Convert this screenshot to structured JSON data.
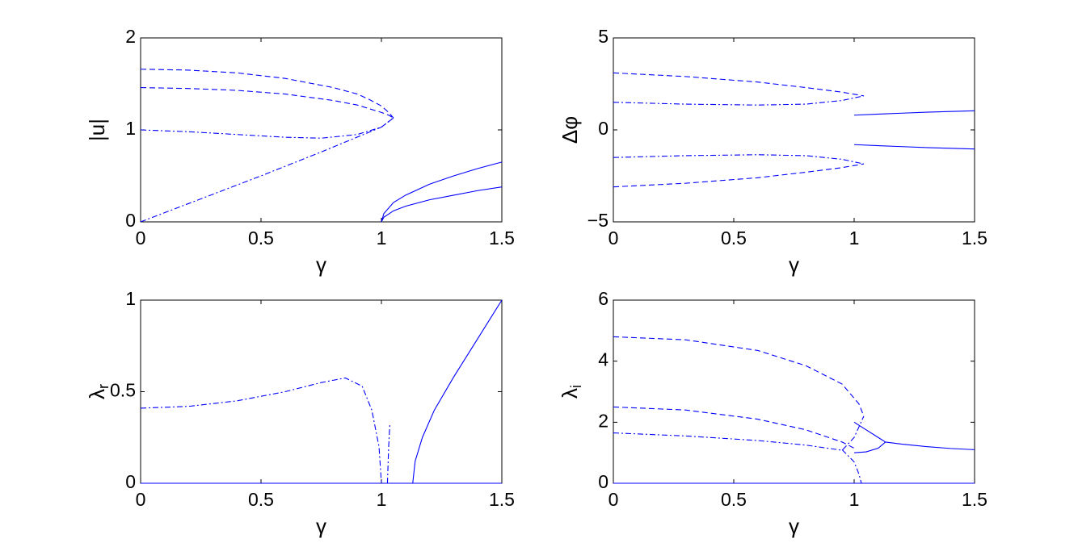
{
  "chart_data": [
    {
      "type": "line",
      "xlabel": "γ",
      "ylabel": "|u|",
      "xlim": [
        0,
        1.5
      ],
      "ylim": [
        0,
        2
      ],
      "xticks": [
        0,
        0.5,
        1,
        1.5
      ],
      "yticks": [
        0,
        1,
        2
      ],
      "series": [
        {
          "color": "#0000ff",
          "dash": "dashed",
          "x": [
            0,
            0.2,
            0.4,
            0.6,
            0.8,
            0.9,
            0.95,
            1.0,
            1.03,
            1.05
          ],
          "values": [
            1.66,
            1.65,
            1.62,
            1.56,
            1.46,
            1.39,
            1.33,
            1.26,
            1.19,
            1.13
          ]
        },
        {
          "color": "#0000ff",
          "dash": "dashed",
          "x": [
            0,
            0.2,
            0.4,
            0.6,
            0.8,
            0.9,
            0.95,
            1.0,
            1.03,
            1.05
          ],
          "values": [
            1.46,
            1.45,
            1.43,
            1.39,
            1.32,
            1.27,
            1.23,
            1.19,
            1.16,
            1.13
          ]
        },
        {
          "color": "#0000ff",
          "dash": "dashdot",
          "x": [
            0,
            0.2,
            0.4,
            0.6,
            0.75,
            0.9,
            1.0,
            1.05
          ],
          "values": [
            1.0,
            0.98,
            0.95,
            0.92,
            0.91,
            0.95,
            1.03,
            1.13
          ]
        },
        {
          "color": "#0000ff",
          "dash": "dashdot",
          "x": [
            0,
            0.25,
            0.5,
            0.75,
            1.0,
            1.05
          ],
          "values": [
            0,
            0.25,
            0.5,
            0.76,
            1.03,
            1.13
          ]
        },
        {
          "color": "#0000ff",
          "dash": "solid",
          "x": [
            1,
            1.01,
            1.05,
            1.1,
            1.2,
            1.3,
            1.4,
            1.5
          ],
          "values": [
            0,
            0.09,
            0.21,
            0.29,
            0.41,
            0.5,
            0.58,
            0.65
          ]
        },
        {
          "color": "#0000ff",
          "dash": "solid",
          "x": [
            1,
            1.01,
            1.05,
            1.1,
            1.2,
            1.3,
            1.4,
            1.5
          ],
          "values": [
            0,
            0.05,
            0.12,
            0.17,
            0.24,
            0.29,
            0.34,
            0.38
          ]
        }
      ]
    },
    {
      "type": "line",
      "xlabel": "γ",
      "ylabel": "Δφ",
      "xlim": [
        0,
        1.5
      ],
      "ylim": [
        -5,
        5
      ],
      "xticks": [
        0,
        0.5,
        1,
        1.5
      ],
      "yticks": [
        {
          "value": -5,
          "label": "−5"
        },
        0,
        5
      ],
      "series": [
        {
          "color": "#0000ff",
          "dash": "dashed",
          "x": [
            0,
            0.3,
            0.6,
            0.8,
            0.95,
            1.04
          ],
          "values": [
            3.1,
            2.9,
            2.6,
            2.3,
            2.05,
            1.85
          ]
        },
        {
          "color": "#0000ff",
          "dash": "dashdot",
          "x": [
            0,
            0.3,
            0.6,
            0.8,
            0.95,
            1.04
          ],
          "values": [
            1.5,
            1.4,
            1.35,
            1.4,
            1.6,
            1.85
          ]
        },
        {
          "color": "#0000ff",
          "dash": "dashdot",
          "x": [
            0,
            0.3,
            0.6,
            0.8,
            0.95,
            1.04
          ],
          "values": [
            -1.5,
            -1.4,
            -1.35,
            -1.4,
            -1.6,
            -1.85
          ]
        },
        {
          "color": "#0000ff",
          "dash": "dashed",
          "x": [
            0,
            0.3,
            0.6,
            0.8,
            0.95,
            1.04
          ],
          "values": [
            -3.1,
            -2.9,
            -2.6,
            -2.3,
            -2.05,
            -1.85
          ]
        },
        {
          "color": "#0000ff",
          "dash": "solid",
          "x": [
            1,
            1.1,
            1.2,
            1.3,
            1.4,
            1.5
          ],
          "values": [
            0.8,
            0.86,
            0.91,
            0.96,
            1.0,
            1.04
          ]
        },
        {
          "color": "#0000ff",
          "dash": "solid",
          "x": [
            1,
            1.1,
            1.2,
            1.3,
            1.4,
            1.5
          ],
          "values": [
            -0.8,
            -0.86,
            -0.91,
            -0.96,
            -1.0,
            -1.04
          ]
        }
      ]
    },
    {
      "type": "line",
      "xlabel": "γ",
      "ylabel": "λ",
      "ylabel_subscript": "r",
      "xlim": [
        0,
        1.5
      ],
      "ylim": [
        0,
        1
      ],
      "xticks": [
        0,
        0.5,
        1,
        1.5
      ],
      "yticks": [
        0,
        0.5,
        1
      ],
      "series": [
        {
          "color": "#0000ff",
          "dash": "solid",
          "x": [
            0,
            1.5
          ],
          "values": [
            0,
            0
          ]
        },
        {
          "color": "#0000ff",
          "dash": "dashdot",
          "x": [
            0,
            0.2,
            0.4,
            0.6,
            0.75,
            0.85,
            0.92,
            0.96,
            0.99,
            1.0
          ],
          "values": [
            0.41,
            0.42,
            0.45,
            0.5,
            0.55,
            0.575,
            0.53,
            0.4,
            0.2,
            0
          ]
        },
        {
          "color": "#0000ff",
          "dash": "dashdot",
          "x": [
            1.025,
            1.03,
            1.035
          ],
          "values": [
            0,
            0.2,
            0.32
          ]
        },
        {
          "color": "#0000ff",
          "dash": "solid",
          "x": [
            1.13,
            1.14,
            1.17,
            1.22,
            1.3,
            1.4,
            1.5
          ],
          "values": [
            0,
            0.12,
            0.25,
            0.4,
            0.58,
            0.79,
            1.0
          ]
        }
      ]
    },
    {
      "type": "line",
      "xlabel": "γ",
      "ylabel": "λ",
      "ylabel_subscript": "i",
      "xlim": [
        0,
        1.5
      ],
      "ylim": [
        0,
        6
      ],
      "xticks": [
        0,
        0.5,
        1,
        1.5
      ],
      "yticks": [
        0,
        2,
        4,
        6
      ],
      "series": [
        {
          "color": "#0000ff",
          "dash": "solid",
          "x": [
            0,
            1.5
          ],
          "values": [
            0,
            0
          ]
        },
        {
          "color": "#0000ff",
          "dash": "dashed",
          "x": [
            0,
            0.3,
            0.6,
            0.8,
            0.95,
            1.02,
            1.04
          ],
          "values": [
            4.8,
            4.7,
            4.35,
            3.85,
            3.25,
            2.6,
            2.2
          ]
        },
        {
          "color": "#0000ff",
          "dash": "dashed",
          "x": [
            0,
            0.3,
            0.6,
            0.8,
            0.95,
            1.0
          ],
          "values": [
            2.5,
            2.4,
            2.1,
            1.75,
            1.35,
            1.15
          ]
        },
        {
          "color": "#0000ff",
          "dash": "dashdot",
          "x": [
            0,
            0.3,
            0.6,
            0.8,
            0.95,
            1.0,
            1.04
          ],
          "values": [
            1.65,
            1.55,
            1.4,
            1.25,
            1.08,
            1.5,
            2.2
          ]
        },
        {
          "color": "#0000ff",
          "dash": "dashdot",
          "x": [
            0.95,
            1.0,
            1.02,
            1.03
          ],
          "values": [
            1.1,
            0.7,
            0.3,
            0
          ]
        },
        {
          "color": "#0000ff",
          "dash": "solid",
          "x": [
            1.0,
            1.05,
            1.1,
            1.13
          ],
          "values": [
            2.0,
            1.75,
            1.5,
            1.35
          ]
        },
        {
          "color": "#0000ff",
          "dash": "solid",
          "x": [
            1.0,
            1.05,
            1.1,
            1.13
          ],
          "values": [
            1.0,
            1.03,
            1.15,
            1.35
          ]
        },
        {
          "color": "#0000ff",
          "dash": "solid",
          "x": [
            1.13,
            1.2,
            1.3,
            1.4,
            1.5
          ],
          "values": [
            1.35,
            1.28,
            1.2,
            1.14,
            1.1
          ]
        }
      ]
    }
  ]
}
